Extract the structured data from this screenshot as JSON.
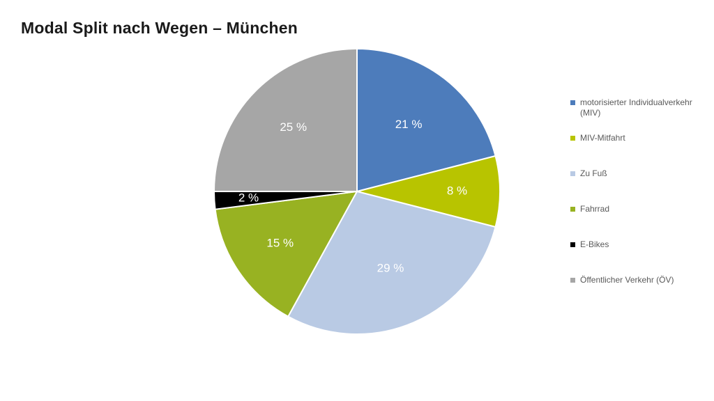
{
  "header": {
    "title": "Modal Split nach Wegen – München"
  },
  "chart_data": {
    "type": "pie",
    "title": "Modal Split nach Wegen – München",
    "categories": [
      "motorisierter Individualverkehr (MIV)",
      "MIV-Mitfahrt",
      "Zu Fuß",
      "Fahrrad",
      "E-Bikes",
      "Öffentlicher Verkehr (ÖV)"
    ],
    "values": [
      21,
      8,
      29,
      15,
      2,
      25
    ],
    "data_labels": [
      "21 %",
      "8 %",
      "29 %",
      "15 %",
      "2 %",
      "25 %"
    ],
    "colors": [
      "#4d7cbb",
      "#b8c400",
      "#b9cae4",
      "#98b222",
      "#000000",
      "#a6a6a6"
    ],
    "start_angle_deg": 0,
    "direction": "clockwise",
    "data_label_color": "#ffffff",
    "label_radius_factors": [
      0.59,
      0.7,
      0.59,
      0.65,
      0.76,
      0.63
    ],
    "legend_position": "right",
    "legend_text_color": "#595959",
    "background": "#ffffff",
    "unit": "%"
  }
}
